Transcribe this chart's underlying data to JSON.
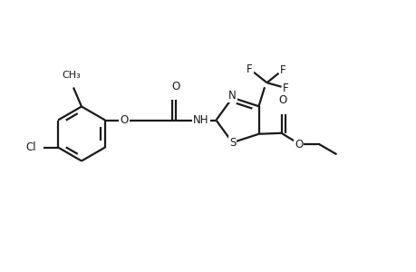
{
  "background_color": "#ffffff",
  "line_color": "#1a1a1a",
  "line_width": 1.6,
  "font_size": 8.5,
  "figsize": [
    4.6,
    3.0
  ],
  "dpi": 100,
  "xlim": [
    0,
    9.2
  ],
  "ylim": [
    0,
    6.0
  ]
}
